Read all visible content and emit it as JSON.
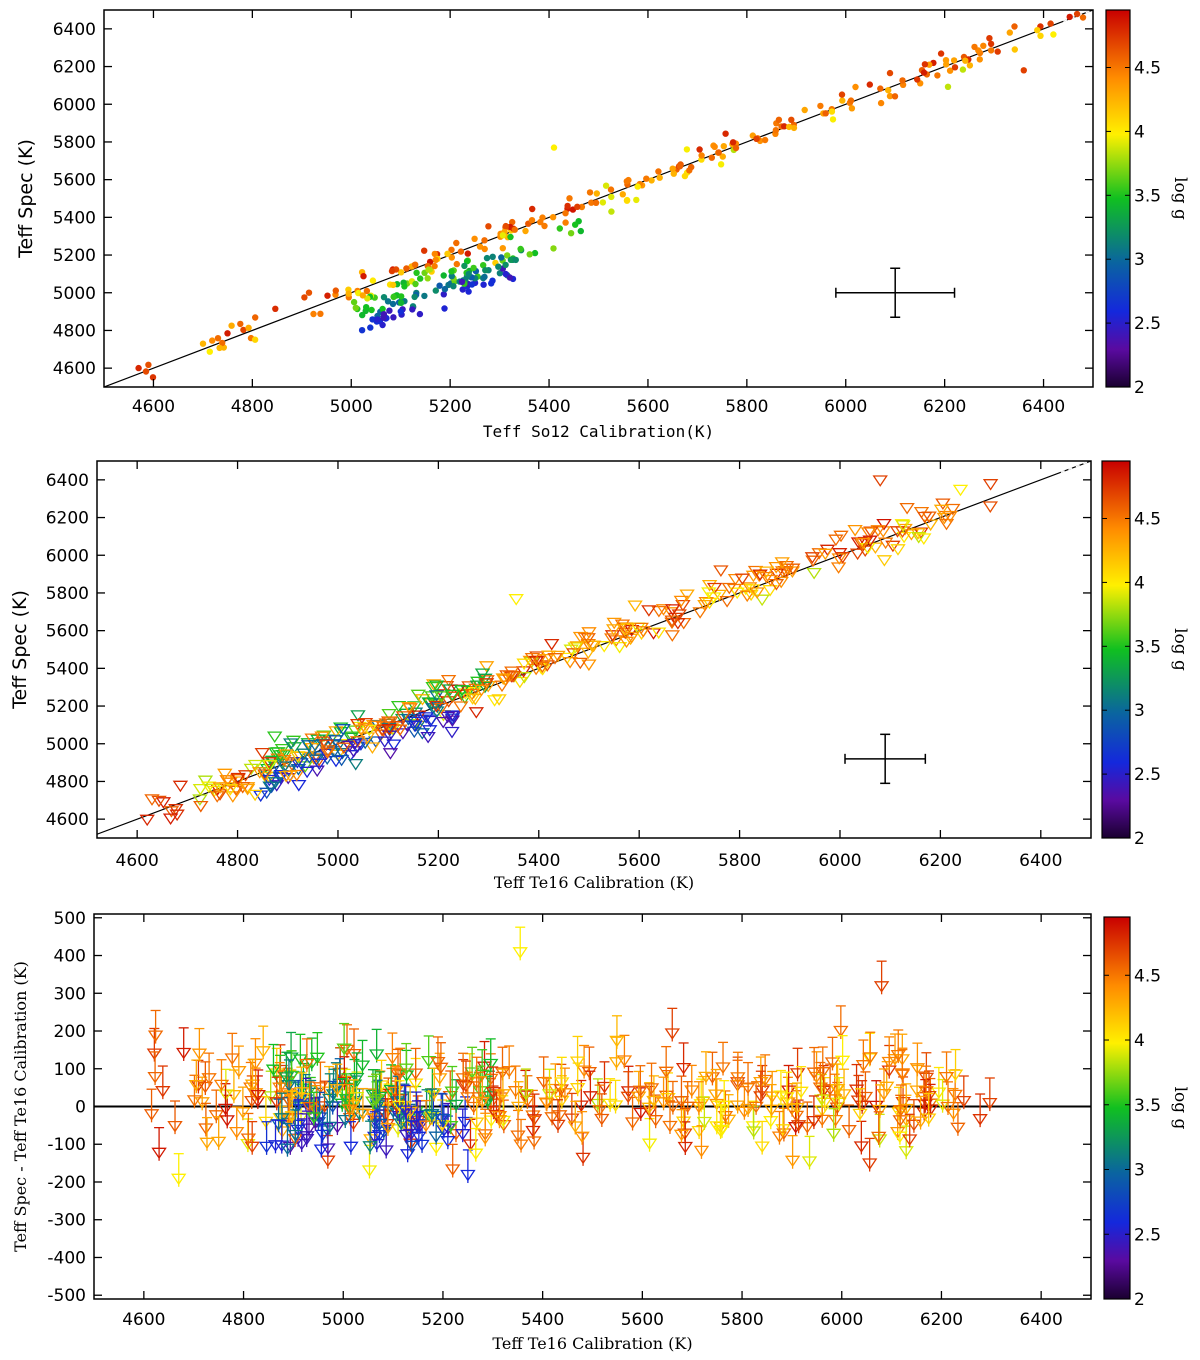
{
  "chart_data": [
    {
      "type": "scatter",
      "marker": "filled-circle",
      "xlabel": "Teff So12 Calibration(K)",
      "ylabel": "Teff  Spec (K)",
      "xlim": [
        4500,
        6500
      ],
      "ylim": [
        4500,
        6500
      ],
      "xticks": [
        4600,
        4800,
        5000,
        5200,
        5400,
        5600,
        5800,
        6000,
        6200,
        6400
      ],
      "yticks": [
        4600,
        4800,
        5000,
        5200,
        5400,
        5600,
        5800,
        6000,
        6200,
        6400
      ],
      "reference_line": "y = x",
      "colorbar": {
        "label": "log g",
        "range": [
          2.0,
          4.95
        ],
        "ticks": [
          2,
          2.5,
          3,
          3.5,
          4,
          4.5
        ]
      },
      "error_cross": {
        "x": 6100,
        "y": 5000,
        "x_err": 120,
        "y_err": 130
      },
      "groups": [
        {
          "logg": 4.7,
          "x_range": [
            4560,
            6480
          ],
          "offset": 35,
          "spread": 30,
          "count": 70
        },
        {
          "logg": 4.4,
          "x_range": [
            4700,
            6350
          ],
          "offset": 0,
          "spread": 30,
          "count": 120
        },
        {
          "logg": 4.0,
          "x_range": [
            4700,
            6420
          ],
          "offset": -30,
          "spread": 40,
          "count": 40
        },
        {
          "logg": 3.6,
          "x_range": [
            5000,
            5480
          ],
          "offset": -100,
          "spread": 30,
          "count": 50
        },
        {
          "logg": 3.1,
          "x_range": [
            5040,
            5350
          ],
          "offset": -150,
          "spread": 25,
          "count": 45
        },
        {
          "logg": 2.5,
          "x_range": [
            5020,
            5350
          ],
          "offset": -210,
          "spread": 20,
          "count": 35
        }
      ],
      "outliers": [
        {
          "x": 5410,
          "y": 5770,
          "logg": 4.0
        },
        {
          "x": 6360,
          "y": 6180,
          "logg": 4.7
        },
        {
          "x": 6420,
          "y": 6370,
          "logg": 4.0
        },
        {
          "x": 4570,
          "y": 4600,
          "logg": 4.8
        }
      ]
    },
    {
      "type": "scatter",
      "marker": "open-triangle-down",
      "xlabel": "Teff  Te16  Calibration (K)",
      "ylabel": "Teff  Spec (K)",
      "xlim": [
        4520,
        6500
      ],
      "ylim": [
        4500,
        6500
      ],
      "xticks": [
        4600,
        4800,
        5000,
        5200,
        5400,
        5600,
        5800,
        6000,
        6200,
        6400
      ],
      "yticks": [
        4600,
        4800,
        5000,
        5200,
        5400,
        5600,
        5800,
        6000,
        6200,
        6400
      ],
      "reference_line": "y = x",
      "colorbar": {
        "label": "log g",
        "range": [
          2.0,
          4.95
        ],
        "ticks": [
          2,
          2.5,
          3,
          3.5,
          4,
          4.5
        ]
      },
      "error_cross": {
        "x": 6090,
        "y": 4920,
        "x_err": 80,
        "y_err": 130
      },
      "groups": [
        {
          "logg": 4.7,
          "x_range": [
            4620,
            6300
          ],
          "offset": 20,
          "spread": 45,
          "count": 90
        },
        {
          "logg": 4.4,
          "x_range": [
            4680,
            6230
          ],
          "offset": 20,
          "spread": 50,
          "count": 160
        },
        {
          "logg": 4.0,
          "x_range": [
            4680,
            6240
          ],
          "offset": -10,
          "spread": 45,
          "count": 60
        },
        {
          "logg": 3.5,
          "x_range": [
            4850,
            5300
          ],
          "offset": 60,
          "spread": 45,
          "count": 50
        },
        {
          "logg": 3.0,
          "x_range": [
            4850,
            5200
          ],
          "offset": -20,
          "spread": 45,
          "count": 45
        },
        {
          "logg": 2.5,
          "x_range": [
            4840,
            5250
          ],
          "offset": -80,
          "spread": 35,
          "count": 40
        }
      ],
      "outliers": [
        {
          "x": 5355,
          "y": 5770,
          "logg": 4.0
        },
        {
          "x": 6080,
          "y": 6400,
          "logg": 4.7
        },
        {
          "x": 6300,
          "y": 6380,
          "logg": 4.7
        },
        {
          "x": 6240,
          "y": 6350,
          "logg": 4.0
        },
        {
          "x": 4620,
          "y": 4600,
          "logg": 4.8
        }
      ]
    },
    {
      "type": "scatter",
      "marker": "open-triangle-down-with-errorbar",
      "xlabel": "Teff  Te16  Calibration (K)",
      "ylabel": "Teff  Spec - Teff  Te16  Calibration (K)",
      "xlim": [
        4500,
        6500
      ],
      "ylim": [
        -510,
        510
      ],
      "xticks": [
        4600,
        4800,
        5000,
        5200,
        5400,
        5600,
        5800,
        6000,
        6200,
        6400
      ],
      "yticks": [
        -500,
        -400,
        -300,
        -200,
        -100,
        0,
        100,
        200,
        300,
        400,
        500
      ],
      "reference_line": "y = 0",
      "error_bar_height": 65,
      "colorbar": {
        "label": "log g",
        "range": [
          2.0,
          4.95
        ],
        "ticks": [
          2,
          2.5,
          3,
          3.5,
          4,
          4.5
        ]
      },
      "groups": [
        {
          "logg": 4.7,
          "x_range": [
            4610,
            6300
          ],
          "offset": 0,
          "spread": 65,
          "count": 110
        },
        {
          "logg": 4.4,
          "x_range": [
            4680,
            6230
          ],
          "offset": 20,
          "spread": 65,
          "count": 170
        },
        {
          "logg": 4.0,
          "x_range": [
            4680,
            6240
          ],
          "offset": -10,
          "spread": 65,
          "count": 70
        },
        {
          "logg": 3.5,
          "x_range": [
            4850,
            5300
          ],
          "offset": 60,
          "spread": 45,
          "count": 45
        },
        {
          "logg": 3.0,
          "x_range": [
            4850,
            5200
          ],
          "offset": -20,
          "spread": 45,
          "count": 45
        },
        {
          "logg": 2.5,
          "x_range": [
            4840,
            5250
          ],
          "offset": -80,
          "spread": 35,
          "count": 40
        }
      ],
      "outliers": [
        {
          "x": 5355,
          "y": 410,
          "logg": 4.0
        },
        {
          "x": 6080,
          "y": 320,
          "logg": 4.7
        },
        {
          "x": 5660,
          "y": 195,
          "logg": 4.7
        },
        {
          "x": 4670,
          "y": -190,
          "logg": 4.0
        },
        {
          "x": 5250,
          "y": -180,
          "logg": 2.6
        }
      ]
    }
  ]
}
